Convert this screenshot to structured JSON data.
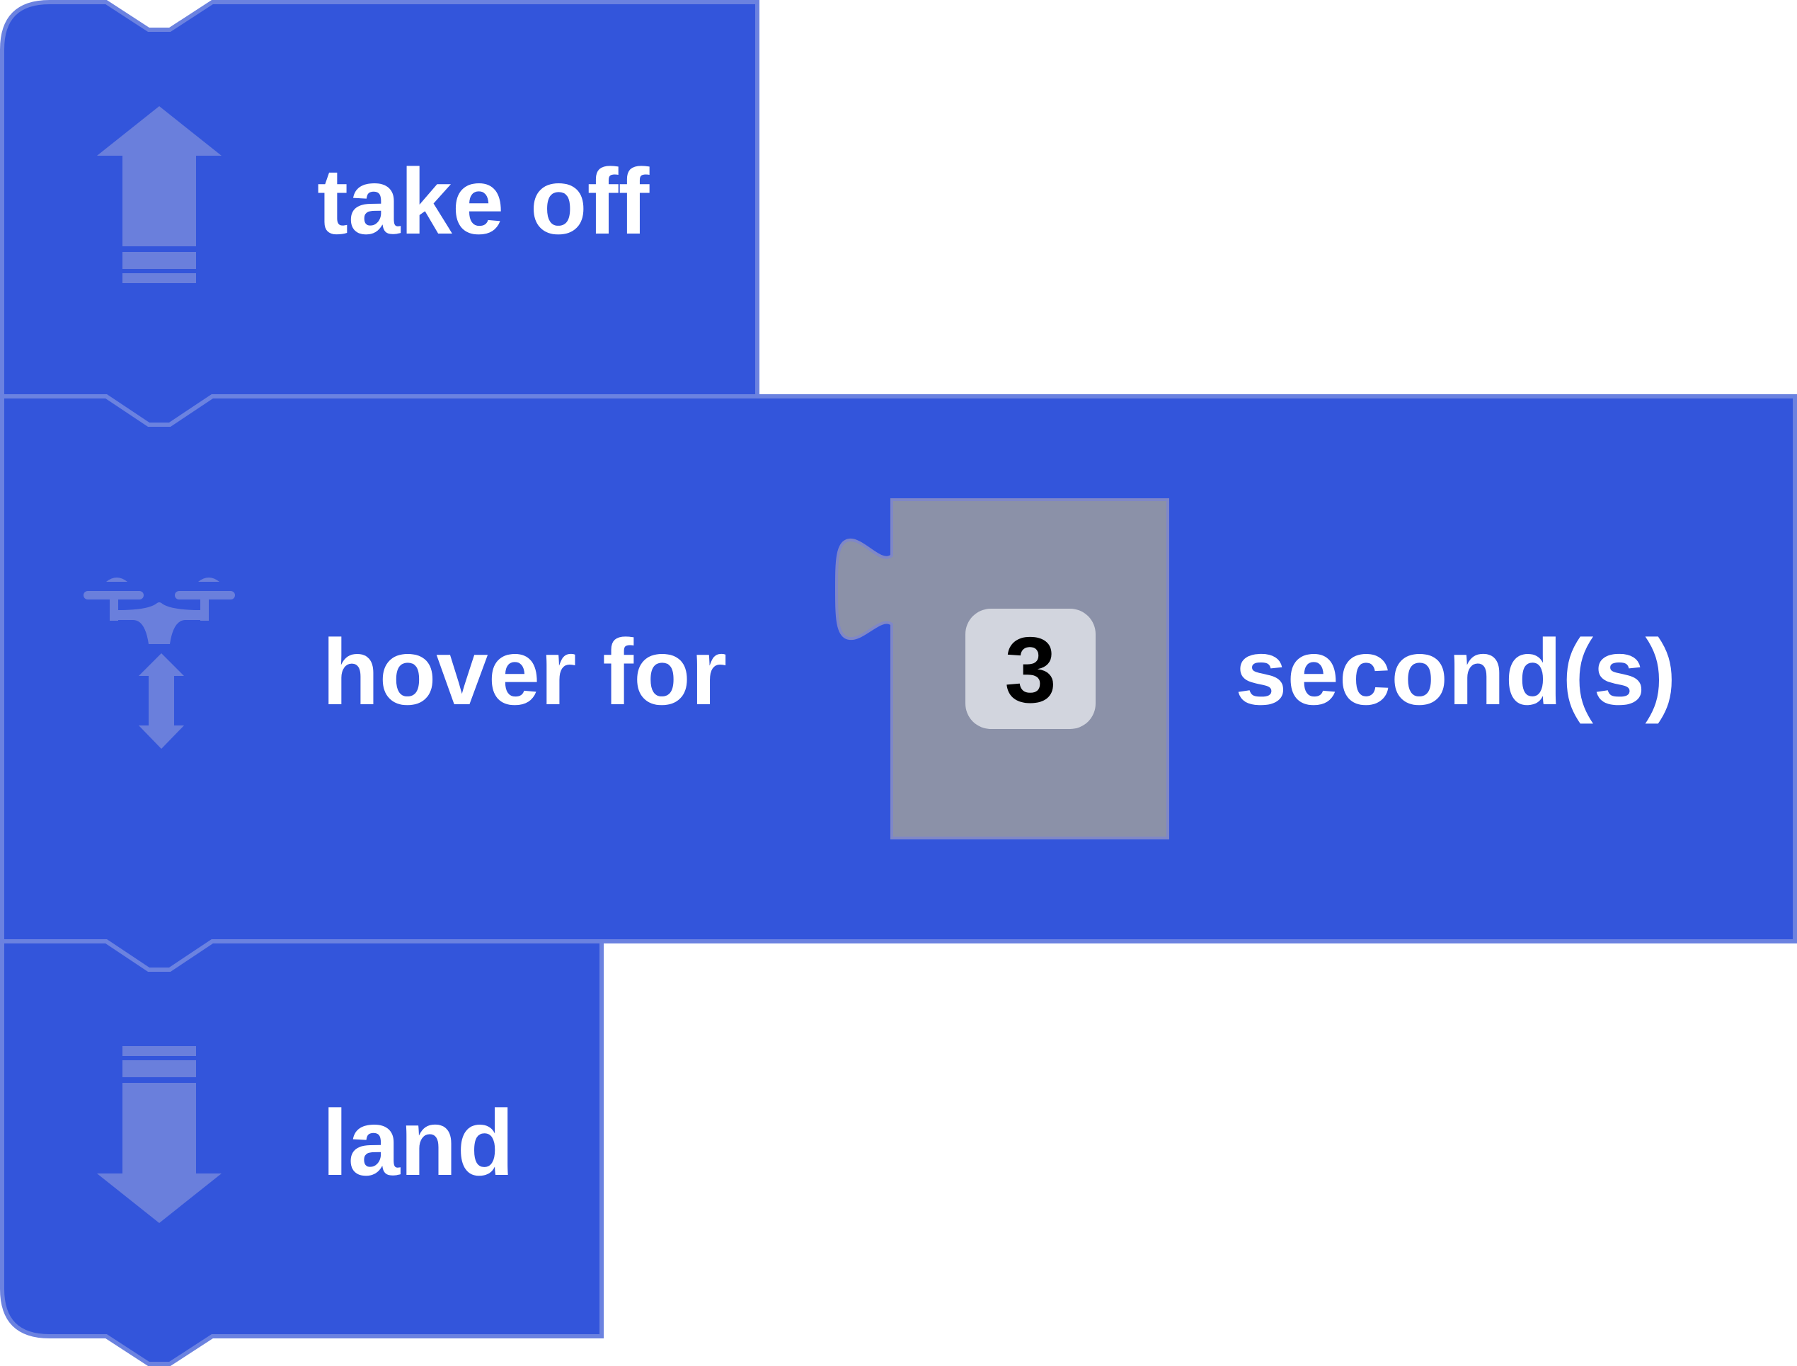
{
  "colors": {
    "block_fill": "#3355db",
    "block_border": "#6b82e0",
    "icon": "#6a7fdc",
    "socket_fill": "#8b91a8",
    "socket_border": "#7f87c8",
    "field_fill": "#d2d5de",
    "text": "#ffffff",
    "value_text": "#000000"
  },
  "blocks": {
    "takeoff": {
      "label": "take off",
      "icon": "arrow-up-icon"
    },
    "hover": {
      "label_before": "hover for",
      "value": "3",
      "label_after": "second(s)",
      "icon": "drone-hover-icon"
    },
    "land": {
      "label": "land",
      "icon": "arrow-down-icon"
    }
  }
}
